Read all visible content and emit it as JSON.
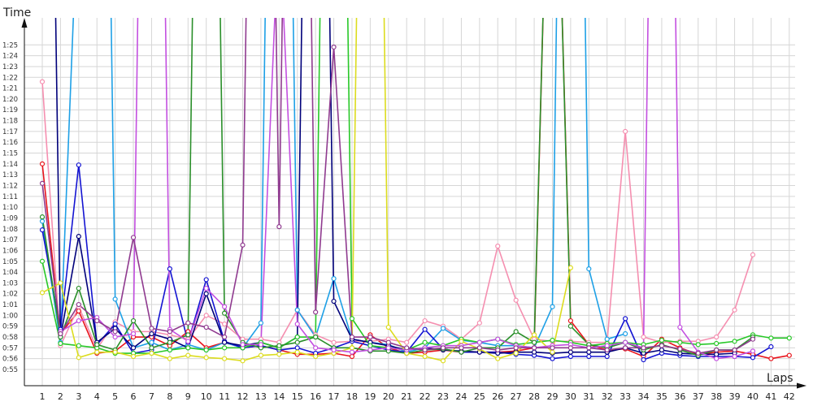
{
  "chart_data": {
    "type": "line",
    "xlabel": "Laps",
    "ylabel": "Time",
    "grid": true,
    "legend": "none",
    "ylim": [
      "0:55",
      "1:27.5"
    ],
    "y_tick_labels": [
      "0:55",
      "0:56",
      "0:57",
      "0:58",
      "0:59",
      "1:00",
      "1:01",
      "1:02",
      "1:03",
      "1:04",
      "1:05",
      "1:06",
      "1:07",
      "1:08",
      "1:09",
      "1:10",
      "1:11",
      "1:12",
      "1:13",
      "1:14",
      "1:15",
      "1:16",
      "1:17",
      "1:18",
      "1:19",
      "1:20",
      "1:21",
      "1:22",
      "1:23",
      "1:24",
      "1:25"
    ],
    "x": [
      1,
      2,
      3,
      4,
      5,
      6,
      7,
      8,
      9,
      10,
      11,
      12,
      13,
      14,
      15,
      16,
      17,
      18,
      19,
      20,
      21,
      22,
      23,
      24,
      25,
      26,
      27,
      28,
      29,
      30,
      31,
      32,
      33,
      34,
      35,
      36,
      37,
      38,
      39,
      40,
      41,
      42
    ],
    "series": [
      {
        "color": "#e8141c",
        "values": [
          "1:14.0",
          "0:58.3",
          "1:00.4",
          "0:56.5",
          "0:56.7",
          "0:58.0",
          "0:58.0",
          "0:57.2",
          "0:58.5",
          "0:57.0",
          "0:57.5",
          "0:57.0",
          "0:57.2",
          "0:56.8",
          "0:56.4",
          "0:56.4",
          "0:56.5",
          "0:56.2",
          "0:58.2",
          "0:57.0",
          "0:56.5",
          "0:56.6",
          "0:56.8",
          "0:56.6",
          "0:56.6",
          "0:56.6",
          "0:56.7",
          "0:57.0",
          "2:00.0",
          "0:59.5",
          "0:57.3",
          "0:56.8",
          "0:56.9",
          "0:56.2",
          "0:57.8",
          "0:57.0",
          "0:56.4",
          "0:56.6",
          "0:56.7",
          "0:56.4",
          "0:56.0",
          "0:56.3"
        ]
      },
      {
        "color": "#f58fb0",
        "values": [
          "1:21.6",
          "0:57.2",
          "1:00.8",
          "0:56.9",
          "0:59.4",
          "0:58.5",
          "0:58.5",
          "0:58.2",
          "0:57.8",
          "1:00.0",
          "0:59.2",
          "0:57.8",
          "0:57.8",
          "0:57.5",
          "1:00.5",
          "0:58.2",
          "0:57.5",
          "0:57.6",
          "0:57.6",
          "0:57.8",
          "0:57.5",
          "0:59.5",
          "0:59.0",
          "0:57.8",
          "0:59.3",
          "1:06.4",
          "1:01.4",
          "0:57.8",
          "0:57.6",
          "0:57.6",
          "0:57.5",
          "0:57.5",
          "1:17.0",
          "0:58.0",
          "0:57.5",
          "0:57.6",
          "0:57.6",
          "0:58.0",
          "1:00.5",
          "1:05.6",
          null,
          null
        ]
      },
      {
        "color": "#1ea0e6",
        "values": [
          "1:08.7",
          "0:57.5",
          "1:40.0",
          "3:00.0",
          "1:01.5",
          "0:57.0",
          "0:57.5",
          "0:56.8",
          "0:57.3",
          "0:56.8",
          "0:57.5",
          "0:57.0",
          "0:59.3",
          "3:00.0",
          "1:00.5",
          "0:58.0",
          "1:03.4",
          "0:57.8",
          "0:57.5",
          "0:57.3",
          "0:56.6",
          "0:57.0",
          "0:58.8",
          "0:57.7",
          "0:57.5",
          "0:57.2",
          "0:57.2",
          "0:57.0",
          "1:00.8",
          "3:00.0",
          "1:04.3",
          "0:57.8",
          "0:58.3",
          null,
          null,
          null,
          null,
          null,
          null,
          null,
          null,
          null
        ]
      },
      {
        "color": "#1414d2",
        "values": [
          "1:07.9",
          "0:58.7",
          "1:13.9",
          "0:57.3",
          "0:59.2",
          "0:56.5",
          "0:56.8",
          "1:04.3",
          "0:57.5",
          "1:03.3",
          "0:57.6",
          "0:57.0",
          "0:57.2",
          "0:56.8",
          "0:57.0",
          "0:56.5",
          "0:57.0",
          "0:57.6",
          "0:57.2",
          "0:56.8",
          "0:56.6",
          "0:58.7",
          "0:56.9",
          "0:56.6",
          "0:56.6",
          "0:56.6",
          "0:56.4",
          "0:56.3",
          "0:56.0",
          "0:56.2",
          "0:56.2",
          "0:56.2",
          "0:59.7",
          "0:55.9",
          "0:56.5",
          "0:56.3",
          "0:56.2",
          "0:56.2",
          "0:56.2",
          "0:56.1",
          "0:57.1",
          null
        ]
      },
      {
        "color": "#00007a",
        "values": [
          "2:50.0",
          "0:58.0",
          "1:07.3",
          "0:57.5",
          "0:58.8",
          "0:57.0",
          "0:58.3",
          "0:57.8",
          "0:57.0",
          "1:02.0",
          "0:57.5",
          "0:57.2",
          "0:57.5",
          "0:57.0",
          "0:58.0",
          "3:00.0",
          "1:01.3",
          "0:57.8",
          "0:57.5",
          "0:57.2",
          "0:56.8",
          "0:57.0",
          "0:56.8",
          "0:56.7",
          "0:56.6",
          "0:56.5",
          "0:56.6",
          "0:56.6",
          "0:56.5",
          "0:56.6",
          "0:56.6",
          "0:56.6",
          "0:57.0",
          "0:56.5",
          "0:56.8",
          "0:56.5",
          "0:56.4",
          "0:56.4",
          "0:56.5",
          null,
          null,
          null
        ]
      },
      {
        "color": "#28c828",
        "values": [
          "1:05.0",
          "0:57.4",
          "0:57.2",
          "0:57.0",
          "0:56.5",
          "0:56.5",
          "0:56.5",
          "0:56.8",
          "0:57.0",
          "0:56.8",
          "0:57.0",
          "0:57.0",
          "0:57.5",
          "0:57.0",
          "0:58.0",
          "0:58.0",
          "3:00.0",
          "0:59.7",
          "0:57.2",
          "0:57.0",
          "0:56.8",
          "0:57.5",
          "0:57.2",
          "0:57.8",
          "0:57.5",
          "0:57.8",
          "0:57.3",
          "0:57.5",
          "0:57.7",
          "0:57.5",
          "0:57.2",
          "0:57.4",
          "0:57.5",
          "0:57.3",
          "0:57.7",
          "0:57.5",
          "0:57.3",
          "0:57.4",
          "0:57.6",
          "0:58.2",
          "0:57.9",
          "0:57.9"
        ]
      },
      {
        "color": "#2a8f2a",
        "values": [
          "1:09.1",
          "0:58.0",
          "1:02.5",
          "0:57.3",
          "0:56.8",
          "0:59.5",
          "0:57.0",
          "0:57.5",
          "0:58.2",
          "3:00.0",
          "1:00.2",
          "0:57.5",
          "0:57.0",
          "0:57.2",
          "0:57.5",
          "0:58.0",
          "0:57.0",
          "0:57.0",
          "0:56.7",
          "0:56.7",
          "0:56.5",
          "0:56.8",
          "0:56.9",
          "0:56.6",
          "0:57.0",
          "0:57.0",
          "0:58.5",
          "0:57.5",
          "2:00.0",
          "0:59.0",
          "0:57.3",
          "0:57.0",
          "0:57.5",
          "0:56.8",
          "0:57.3",
          "0:56.8",
          "0:56.3",
          "0:56.8",
          "0:56.8",
          "0:58.0",
          null,
          null
        ]
      },
      {
        "color": "#dcdc1e",
        "values": [
          "1:02.1",
          "1:03.0",
          "0:56.1",
          "0:56.6",
          "0:56.6",
          "0:56.2",
          "0:56.5",
          "0:56.0",
          "0:56.3",
          "0:56.1",
          "0:56.0",
          "0:55.8",
          "0:56.3",
          "0:56.4",
          "0:56.6",
          "0:56.2",
          "0:56.5",
          "0:57.0",
          "3:00.0",
          "0:58.9",
          "0:56.5",
          "0:56.2",
          "0:55.8",
          "0:57.6",
          "0:56.9",
          "0:56.0",
          "0:56.5",
          "0:58.2",
          "0:56.6",
          "1:04.4",
          null,
          null,
          null,
          null,
          null,
          null,
          null,
          null,
          null,
          null,
          null,
          null
        ]
      },
      {
        "color": "#c34fe0",
        "values": [
          null,
          "0:58.5",
          "0:59.5",
          "0:59.8",
          "0:58.0",
          "0:58.3",
          "3:00.0",
          "0:58.7",
          "0:57.6",
          "1:02.5",
          "1:00.8",
          "0:57.3",
          "0:57.3",
          "1:37.0",
          "0:59.2",
          "0:57.0",
          "0:56.8",
          "0:56.6",
          "0:56.8",
          "0:57.0",
          "0:56.8",
          "0:57.0",
          "0:57.2",
          "0:57.2",
          "0:57.5",
          "0:57.8",
          "0:57.2",
          "0:57.0",
          "0:57.2",
          "0:57.3",
          "0:57.0",
          "0:57.2",
          "0:57.5",
          "0:57.0",
          "3:00.0",
          "0:58.9",
          "0:56.6",
          "0:56.0",
          "0:56.2",
          "0:56.7",
          null,
          null
        ]
      },
      {
        "color": "#8f3a8f",
        "values": [
          "1:12.2",
          "0:58.3",
          "1:01.0",
          "0:59.5",
          "0:58.5",
          "1:07.2",
          "0:58.8",
          "0:58.5",
          "0:59.3",
          "0:58.9",
          "0:58.0",
          "1:06.5",
          "3:00.0",
          "1:08.2",
          "3:00.0",
          "1:00.3",
          "1:24.8",
          "0:58.0",
          "0:58.0",
          "0:57.5",
          "0:57.0",
          "0:56.8",
          "0:57.0",
          "0:57.0",
          "0:57.0",
          "0:56.8",
          "0:57.0",
          "0:57.0",
          "0:57.0",
          "0:57.0",
          "0:57.0",
          "0:56.8",
          "0:57.0",
          "0:57.0",
          "0:57.2",
          "0:56.9",
          "0:56.5",
          "0:56.8",
          "0:56.8",
          "0:57.8",
          null,
          null
        ]
      }
    ]
  }
}
